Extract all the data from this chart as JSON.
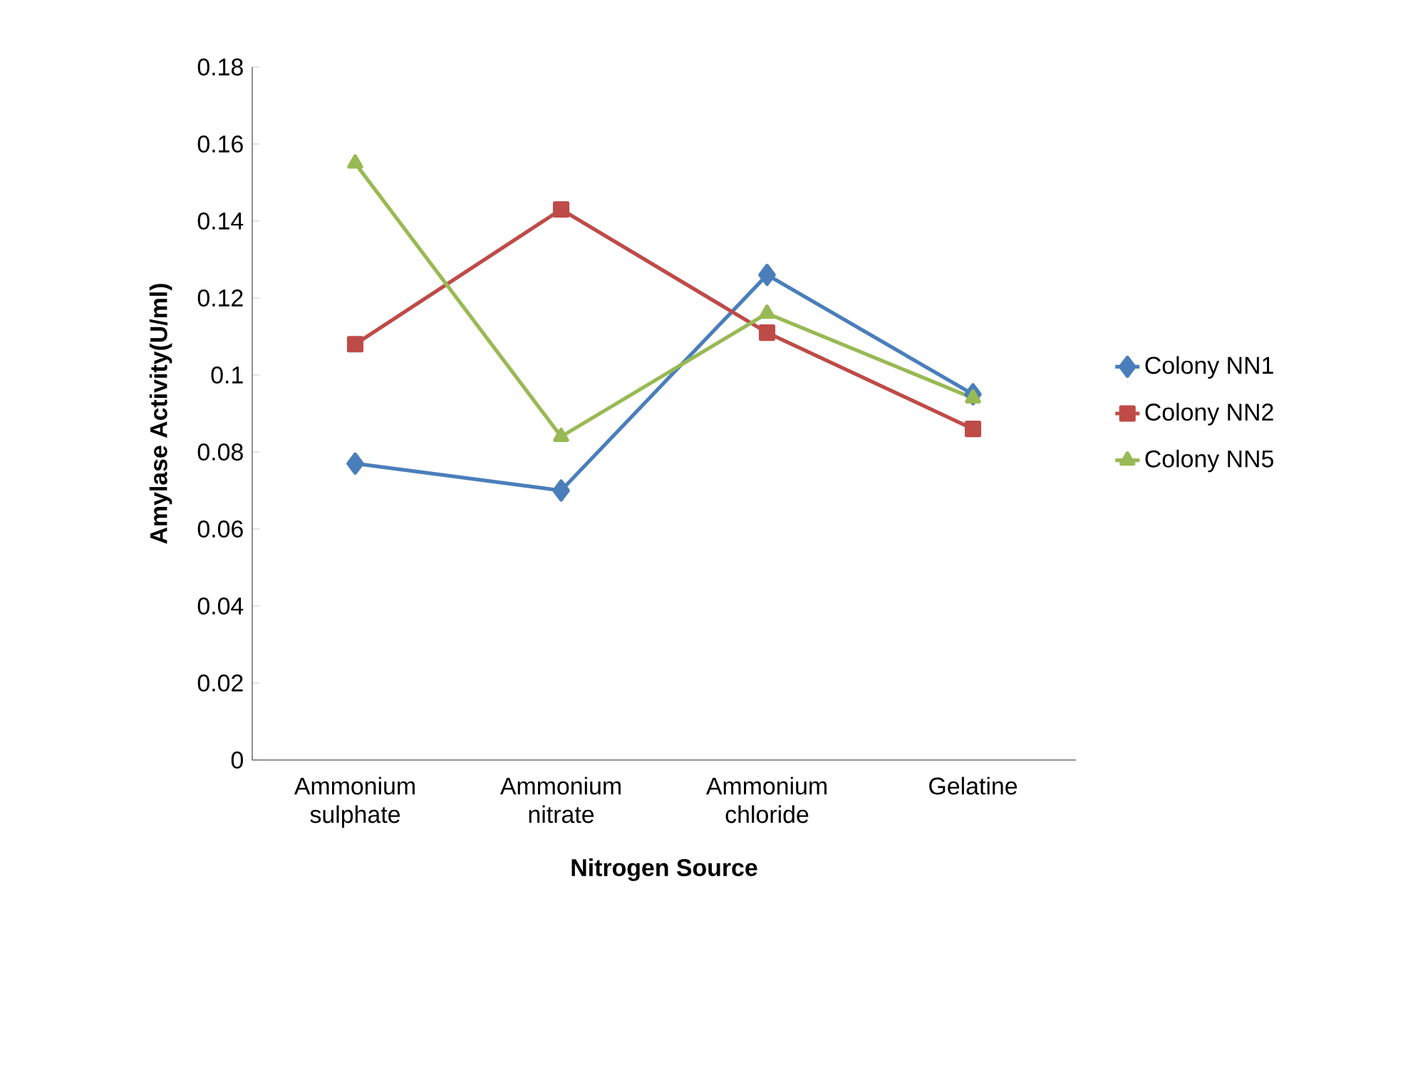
{
  "chart_data": {
    "type": "line",
    "xlabel": "Nitrogen Source",
    "ylabel": "Amylase Activity(U/ml)",
    "categories": [
      "Ammonium sulphate",
      "Ammonium nitrate",
      "Ammonium chloride",
      "Gelatine"
    ],
    "series": [
      {
        "name": "Colony NN1",
        "color": "#4a7ebb",
        "marker": "diamond",
        "values": [
          0.077,
          0.07,
          0.126,
          0.095
        ]
      },
      {
        "name": "Colony NN2",
        "color": "#be4b48",
        "marker": "square",
        "values": [
          0.108,
          0.143,
          0.111,
          0.086
        ]
      },
      {
        "name": "Colony NN5",
        "color": "#98b954",
        "marker": "triangle",
        "values": [
          0.155,
          0.084,
          0.116,
          0.094
        ]
      }
    ],
    "ylim": [
      0,
      0.18
    ],
    "yticks": [
      0,
      0.02,
      0.04,
      0.06,
      0.08,
      0.1,
      0.12,
      0.14,
      0.16,
      0.18
    ],
    "grid": false,
    "legend": "right"
  }
}
